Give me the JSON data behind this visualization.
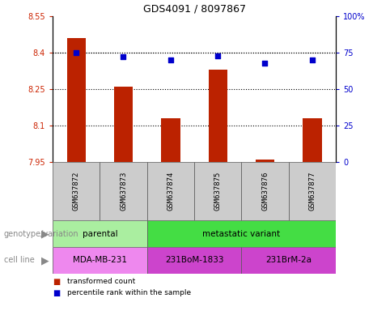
{
  "title": "GDS4091 / 8097867",
  "samples": [
    "GSM637872",
    "GSM637873",
    "GSM637874",
    "GSM637875",
    "GSM637876",
    "GSM637877"
  ],
  "transformed_counts": [
    8.46,
    8.26,
    8.13,
    8.33,
    7.96,
    8.13
  ],
  "percentile_ranks": [
    75,
    72,
    70,
    73,
    68,
    70
  ],
  "ylim_left": [
    7.95,
    8.55
  ],
  "ylim_right": [
    0,
    100
  ],
  "yticks_left": [
    7.95,
    8.1,
    8.25,
    8.4,
    8.55
  ],
  "yticks_right": [
    0,
    25,
    50,
    75,
    100
  ],
  "ytick_labels_left": [
    "7.95",
    "8.1",
    "8.25",
    "8.4",
    "8.55"
  ],
  "ytick_labels_right": [
    "0",
    "25",
    "50",
    "75",
    "100%"
  ],
  "bar_color": "#bb2200",
  "dot_color": "#0000cc",
  "grid_color": "#000000",
  "genotype_groups": [
    {
      "label": "parental",
      "cols": [
        0,
        1
      ],
      "color": "#aaeea0"
    },
    {
      "label": "metastatic variant",
      "cols": [
        2,
        3,
        4,
        5
      ],
      "color": "#44dd44"
    }
  ],
  "cell_line_groups": [
    {
      "label": "MDA-MB-231",
      "cols": [
        0,
        1
      ],
      "color": "#ee88ee"
    },
    {
      "label": "231BoM-1833",
      "cols": [
        2,
        3
      ],
      "color": "#dd55dd"
    },
    {
      "label": "231BrM-2a",
      "cols": [
        4,
        5
      ],
      "color": "#dd55dd"
    }
  ],
  "legend_items": [
    {
      "label": "transformed count",
      "color": "#bb2200"
    },
    {
      "label": "percentile rank within the sample",
      "color": "#0000cc"
    }
  ],
  "genotype_label": "genotype/variation",
  "cell_line_label": "cell line",
  "bg_color": "#ffffff",
  "tick_area_color": "#cccccc"
}
